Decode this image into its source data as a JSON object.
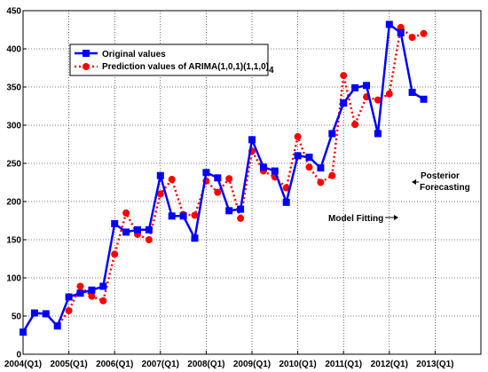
{
  "chart_data": {
    "type": "line",
    "x_start": 2004.0,
    "x_step": 0.25,
    "xlim": [
      2004,
      2014
    ],
    "ylim": [
      0,
      450
    ],
    "xticks": [
      2004,
      2005,
      2006,
      2007,
      2008,
      2009,
      2010,
      2011,
      2012,
      2013
    ],
    "xticklabels": [
      "2004(Q1)",
      "2005(Q1)",
      "2006(Q1)",
      "2007(Q1)",
      "2008(Q1)",
      "2009(Q1)",
      "2010(Q1)",
      "2011(Q1)",
      "2012(Q1)",
      "2013(Q1)"
    ],
    "yticks": [
      0,
      50,
      100,
      150,
      200,
      250,
      300,
      350,
      400,
      450
    ],
    "grid": true,
    "legend_placement": "top-left",
    "series": [
      {
        "name": "Original values",
        "color": "#0000ff",
        "line_style": "solid",
        "marker": "square",
        "values": [
          29,
          54,
          53,
          37,
          75,
          80,
          84,
          89,
          171,
          160,
          163,
          163,
          234,
          181,
          181,
          152,
          238,
          231,
          188,
          190,
          281,
          245,
          240,
          199,
          260,
          258,
          244,
          289,
          329,
          349,
          352,
          289,
          432,
          421,
          343,
          334
        ]
      },
      {
        "name": "Prediction values of ARIMA(1,0,1)(1,1,0)",
        "name_subscript": "4",
        "color": "#ff0000",
        "line_style": "dotted",
        "marker": "circle",
        "values": [
          29,
          54,
          53,
          37,
          57,
          89,
          76,
          70,
          131,
          185,
          157,
          150,
          210,
          229,
          183,
          182,
          227,
          212,
          230,
          178,
          266,
          240,
          232,
          218,
          285,
          245,
          225,
          234,
          365,
          301,
          337,
          333,
          341,
          428,
          415,
          420
        ]
      }
    ],
    "annotations": [
      {
        "text": "Model Fitting",
        "arrow": "right",
        "x": 2010.7,
        "y": 228
      },
      {
        "text": "Posterior",
        "arrow": "left",
        "x": 2012.3,
        "y": 225
      },
      {
        "text": "Forecasting",
        "arrow": "none",
        "x": 2012.3,
        "y": 209
      }
    ]
  }
}
